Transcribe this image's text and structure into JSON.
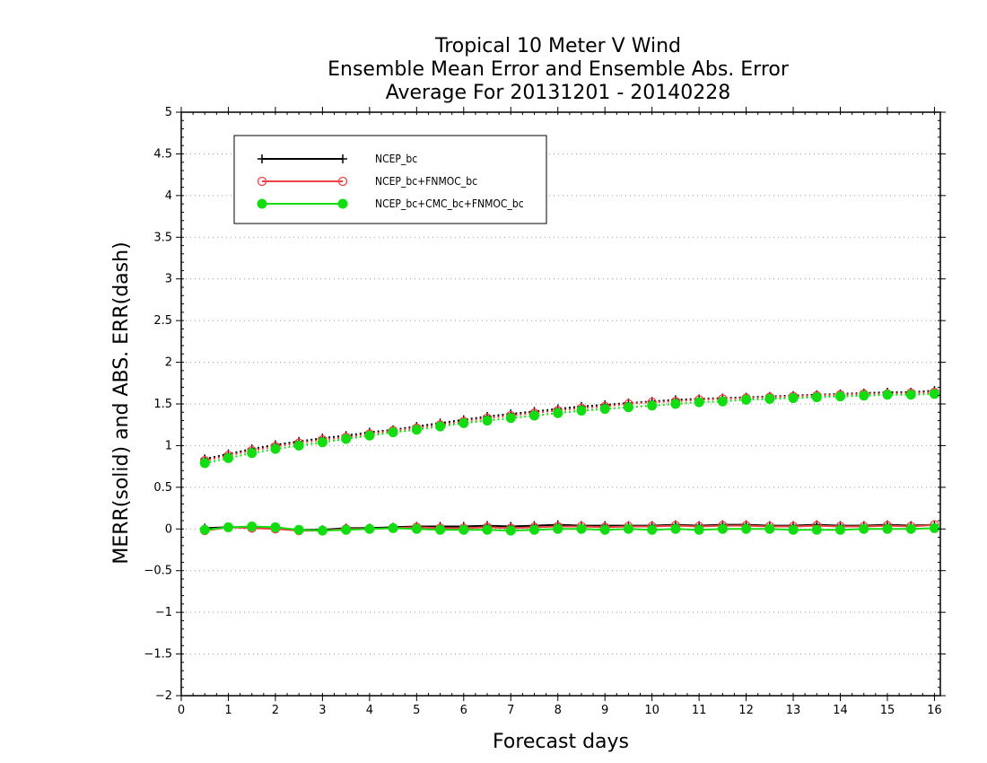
{
  "colors": {
    "ncep": "#000000",
    "ncep_fnmoc": "#ee4444",
    "ncep_cmc_fnmoc": "#11dd11",
    "grid": "#999999"
  },
  "chart_data": {
    "type": "line",
    "title": [
      "Tropical 10 Meter V Wind",
      "Ensemble Mean Error and Ensemble Abs. Error",
      "Average For 20131201 - 20140228"
    ],
    "xlabel": "Forecast days",
    "ylabel": "MERR(solid) and ABS. ERR(dash)",
    "xlim": [
      0,
      16.125
    ],
    "ylim": [
      -2,
      5
    ],
    "xticks": [
      "0",
      "1",
      "2",
      "3",
      "4",
      "5",
      "6",
      "7",
      "8",
      "9",
      "10",
      "11",
      "12",
      "13",
      "14",
      "15",
      "16"
    ],
    "yticks": [
      "−2",
      "−1.5",
      "−1",
      "−0.5",
      "0",
      "0.5",
      "1",
      "1.5",
      "2",
      "2.5",
      "3",
      "3.5",
      "4",
      "4.5",
      "5"
    ],
    "ytick_values": [
      -2,
      -1.5,
      -1,
      -0.5,
      0,
      0.5,
      1,
      1.5,
      2,
      2.5,
      3,
      3.5,
      4,
      4.5,
      5
    ],
    "grid": "horizontal-dotted",
    "legend_position": "top-left",
    "x": [
      0.5,
      1,
      1.5,
      2,
      2.5,
      3,
      3.5,
      4,
      4.5,
      5,
      5.5,
      6,
      6.5,
      7,
      7.5,
      8,
      8.5,
      9,
      9.5,
      10,
      10.5,
      11,
      11.5,
      12,
      12.5,
      13,
      13.5,
      14,
      14.5,
      15,
      15.5,
      16
    ],
    "series": [
      {
        "name": "NCEP_bc",
        "key": "ncep",
        "marker": "plus",
        "merr": [
          0.01,
          0.02,
          0.02,
          0.01,
          -0.01,
          -0.01,
          0.01,
          0.01,
          0.02,
          0.03,
          0.03,
          0.03,
          0.04,
          0.03,
          0.04,
          0.05,
          0.04,
          0.04,
          0.04,
          0.04,
          0.05,
          0.04,
          0.05,
          0.05,
          0.04,
          0.04,
          0.05,
          0.04,
          0.04,
          0.05,
          0.04,
          0.05
        ],
        "abs": [
          0.84,
          0.9,
          0.96,
          1.01,
          1.05,
          1.09,
          1.12,
          1.16,
          1.19,
          1.23,
          1.27,
          1.31,
          1.35,
          1.38,
          1.41,
          1.44,
          1.47,
          1.49,
          1.51,
          1.53,
          1.55,
          1.56,
          1.57,
          1.58,
          1.59,
          1.6,
          1.61,
          1.62,
          1.63,
          1.64,
          1.64,
          1.66
        ]
      },
      {
        "name": "NCEP_bc+FNMOC_bc",
        "key": "ncep_fnmoc",
        "marker": "open-circle",
        "merr": [
          -0.02,
          0.02,
          0.01,
          0.0,
          -0.02,
          -0.02,
          0.0,
          0.0,
          0.01,
          0.02,
          0.01,
          0.01,
          0.02,
          0.01,
          0.02,
          0.03,
          0.03,
          0.02,
          0.03,
          0.03,
          0.04,
          0.03,
          0.04,
          0.04,
          0.03,
          0.03,
          0.04,
          0.03,
          0.03,
          0.04,
          0.03,
          0.05
        ],
        "abs": [
          0.82,
          0.88,
          0.94,
          0.99,
          1.03,
          1.07,
          1.1,
          1.14,
          1.18,
          1.21,
          1.25,
          1.29,
          1.33,
          1.36,
          1.39,
          1.42,
          1.45,
          1.47,
          1.5,
          1.52,
          1.53,
          1.55,
          1.56,
          1.57,
          1.58,
          1.59,
          1.6,
          1.61,
          1.62,
          1.62,
          1.63,
          1.64
        ]
      },
      {
        "name": "NCEP_bc+CMC_bc+FNMOC_bc",
        "key": "ncep_cmc_fnmoc",
        "marker": "filled-circle",
        "merr": [
          -0.01,
          0.02,
          0.03,
          0.02,
          -0.01,
          -0.02,
          -0.01,
          0.0,
          0.01,
          0.0,
          -0.01,
          -0.01,
          -0.01,
          -0.02,
          -0.01,
          0.0,
          0.0,
          -0.01,
          0.0,
          -0.01,
          0.0,
          -0.01,
          0.0,
          0.0,
          0.0,
          -0.01,
          -0.01,
          -0.01,
          0.0,
          0.0,
          0.0,
          0.01
        ],
        "abs": [
          0.79,
          0.85,
          0.91,
          0.96,
          1.0,
          1.04,
          1.08,
          1.12,
          1.16,
          1.19,
          1.23,
          1.27,
          1.3,
          1.33,
          1.36,
          1.39,
          1.42,
          1.44,
          1.46,
          1.48,
          1.5,
          1.52,
          1.53,
          1.55,
          1.56,
          1.57,
          1.58,
          1.59,
          1.6,
          1.61,
          1.61,
          1.62
        ]
      }
    ]
  }
}
